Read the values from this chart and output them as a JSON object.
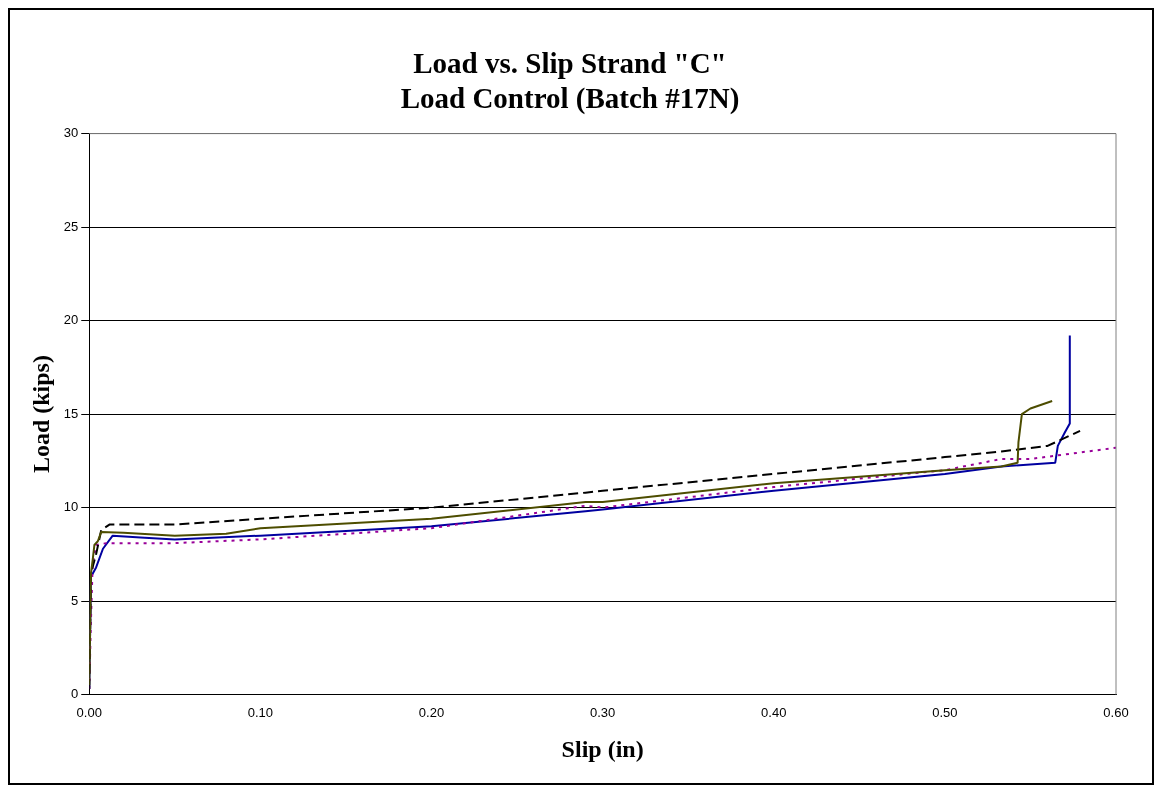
{
  "chart_data": {
    "type": "line",
    "title": [
      "Load vs. Slip Strand \"C\"",
      "Load Control (Batch #17N)"
    ],
    "xlabel": "Slip (in)",
    "ylabel": "Load (kips)",
    "xlim": [
      0,
      0.6
    ],
    "ylim": [
      0,
      30
    ],
    "xticks": [
      {
        "value": 0,
        "label": "0.00"
      },
      {
        "value": 0.1,
        "label": "0.10"
      },
      {
        "value": 0.2,
        "label": "0.20"
      },
      {
        "value": 0.3,
        "label": "0.30"
      },
      {
        "value": 0.4,
        "label": "0.40"
      },
      {
        "value": 0.5,
        "label": "0.50"
      },
      {
        "value": 0.6,
        "label": "0.60"
      }
    ],
    "yticks": [
      0,
      5,
      10,
      15,
      20,
      25,
      30
    ],
    "grid": "y",
    "legend": false,
    "marker": "none",
    "series": [
      {
        "color": "#4d4d00",
        "line_style": "solid",
        "x": [
          0,
          0.001,
          0.002,
          0.003,
          0.005,
          0.007,
          0.02,
          0.05,
          0.08,
          0.1,
          0.2,
          0.29,
          0.3,
          0.4,
          0.5,
          0.533,
          0.5425,
          0.543,
          0.545,
          0.55,
          0.5627
        ],
        "values": [
          0.5,
          6.5,
          7.2,
          8.0,
          8.2,
          8.7,
          8.65,
          8.5,
          8.6,
          8.9,
          9.4,
          10.3,
          10.3,
          11.3,
          12.0,
          12.2,
          12.4,
          13.5,
          15.0,
          15.3,
          15.7
        ]
      },
      {
        "color": "#000000",
        "line_style": "dashed",
        "x": [
          0,
          0.001,
          0.004,
          0.007,
          0.012,
          0.05,
          0.1,
          0.2,
          0.29,
          0.3,
          0.4,
          0.5,
          0.533,
          0.56,
          0.579
        ],
        "values": [
          0.3,
          6.5,
          7.5,
          8.8,
          9.1,
          9.1,
          9.4,
          10.0,
          10.8,
          10.9,
          11.8,
          12.7,
          13.0,
          13.3,
          14.1
        ]
      },
      {
        "color": "#990099",
        "line_style": "dotted",
        "x": [
          0,
          0.001,
          0.002,
          0.004,
          0.01,
          0.05,
          0.1,
          0.2,
          0.29,
          0.3,
          0.4,
          0.5,
          0.533,
          0.55,
          0.6
        ],
        "values": [
          0.3,
          4.0,
          7.0,
          8.0,
          8.1,
          8.1,
          8.3,
          8.9,
          10.1,
          10.0,
          11.1,
          12.0,
          12.6,
          12.6,
          13.2
        ]
      },
      {
        "color": "#0000a0",
        "line_style": "solid",
        "x": [
          0,
          0.001,
          0.004,
          0.008,
          0.0137,
          0.03,
          0.05,
          0.1,
          0.2,
          0.29,
          0.3,
          0.4,
          0.5,
          0.533,
          0.5645,
          0.566,
          0.57,
          0.573,
          0.573
        ],
        "values": [
          0.3,
          6.3,
          6.8,
          7.8,
          8.5,
          8.4,
          8.3,
          8.5,
          9.0,
          9.8,
          9.9,
          10.9,
          11.8,
          12.2,
          12.4,
          13.3,
          14.0,
          14.5,
          19.2
        ]
      }
    ]
  }
}
